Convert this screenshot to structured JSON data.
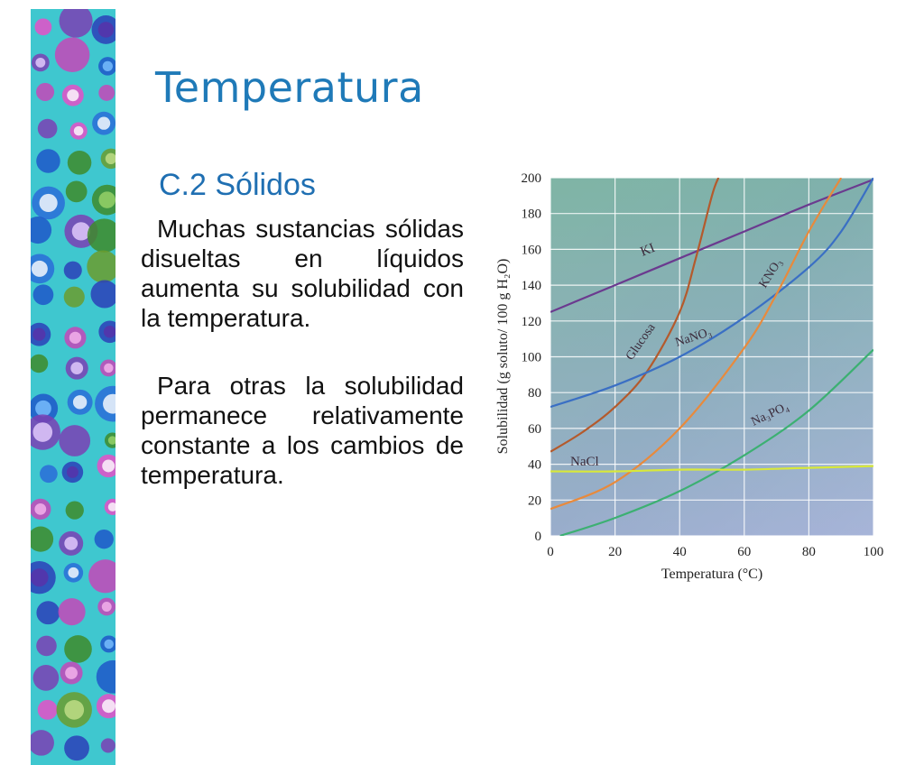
{
  "slide": {
    "title": "Temperatura",
    "subtitle": "C.2 Sólidos",
    "paragraphs": [
      "Muchas sustancias sólidas disueltas en líquidos aumenta su solubilidad con la temperatura.",
      "Para otras la solubilidad permanece relativamente constante a los cambios de temperatura."
    ]
  },
  "colors": {
    "title": "#1f7ab8",
    "strip_background": "#3fc7cf"
  },
  "chart_data": {
    "type": "line",
    "xlabel": "Temperatura (°C)",
    "ylabel": "Solubilidad (g soluto/ 100 g H₂O)",
    "xlim": [
      0,
      100
    ],
    "ylim": [
      0,
      200
    ],
    "xticks": [
      "0",
      "20",
      "40",
      "60",
      "80",
      "100"
    ],
    "yticks": [
      "0",
      "20",
      "40",
      "60",
      "80",
      "100",
      "120",
      "140",
      "160",
      "180",
      "200"
    ],
    "grid": true,
    "series": [
      {
        "name": "KI",
        "color": "#6b3a8f",
        "x": [
          0,
          20,
          40,
          60,
          80,
          100
        ],
        "y": [
          125,
          140,
          155,
          170,
          185,
          199
        ]
      },
      {
        "name": "Glucosa",
        "color": "#b45a2c",
        "x": [
          0,
          10,
          20,
          30,
          40,
          45,
          50,
          52
        ],
        "y": [
          47,
          58,
          72,
          92,
          125,
          155,
          190,
          200
        ]
      },
      {
        "name": "NaNO₃",
        "color": "#3a6fc4",
        "x": [
          0,
          20,
          40,
          60,
          80,
          90,
          100
        ],
        "y": [
          72,
          84,
          100,
          122,
          150,
          170,
          200
        ]
      },
      {
        "name": "KNO₃",
        "color": "#e88a3c",
        "x": [
          0,
          20,
          40,
          60,
          70,
          80,
          90
        ],
        "y": [
          15,
          30,
          60,
          105,
          135,
          170,
          200
        ]
      },
      {
        "name": "Na₃PO₄",
        "color": "#3cb072",
        "x": [
          3,
          20,
          40,
          60,
          80,
          100
        ],
        "y": [
          0,
          10,
          25,
          45,
          70,
          104
        ]
      },
      {
        "name": "NaCl",
        "color": "#d8e83a",
        "x": [
          0,
          20,
          40,
          60,
          80,
          100
        ],
        "y": [
          36,
          36,
          37,
          37,
          38,
          39
        ]
      }
    ],
    "labels": [
      "KI",
      "Glucosa",
      "NaNO₃",
      "KNO₃",
      "Na₃PO₄",
      "NaCl"
    ]
  }
}
